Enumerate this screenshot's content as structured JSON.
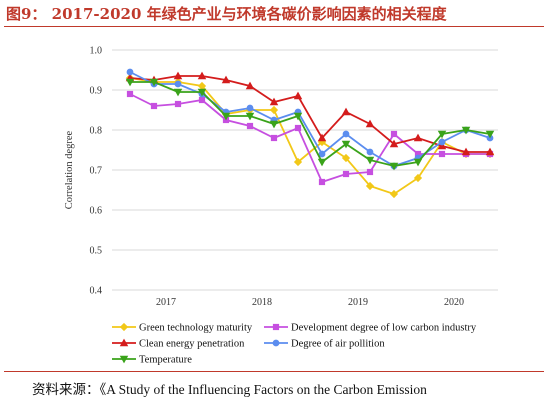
{
  "title": "图9： 2017-2020 年绿色产业与环境各碳价影响因素的相关程度",
  "source": "资料来源：《A Study of the Influencing Factors on the Carbon Emission",
  "chart_data": {
    "type": "line",
    "ylabel": "Correlation degree",
    "xlabel": "",
    "ylim": [
      0.4,
      1.0
    ],
    "yticks": [
      "0.4",
      "0.5",
      "0.6",
      "0.7",
      "0.8",
      "0.9",
      "1.0"
    ],
    "x_tick_labels": [
      "2017",
      "2018",
      "2019",
      "2020"
    ],
    "x_points": 16,
    "grid": "horizontal",
    "legend_position": "bottom",
    "series": [
      {
        "name": "Green technology maturity",
        "color": "#f2c818",
        "marker": "diamond",
        "values": [
          0.93,
          0.92,
          0.92,
          0.91,
          0.84,
          0.85,
          0.85,
          0.72,
          0.77,
          0.73,
          0.66,
          0.64,
          0.68,
          0.77,
          0.74,
          0.74
        ]
      },
      {
        "name": "Development degree of low carbon industry",
        "color": "#c64fe0",
        "marker": "square",
        "values": [
          0.89,
          0.86,
          0.865,
          0.875,
          0.825,
          0.81,
          0.78,
          0.805,
          0.67,
          0.69,
          0.695,
          0.79,
          0.74,
          0.74,
          0.74,
          0.74
        ]
      },
      {
        "name": "Clean energy penetration",
        "color": "#d41c1c",
        "marker": "triangle-up",
        "values": [
          0.93,
          0.925,
          0.935,
          0.935,
          0.925,
          0.91,
          0.87,
          0.885,
          0.78,
          0.845,
          0.815,
          0.765,
          0.78,
          0.76,
          0.745,
          0.745
        ]
      },
      {
        "name": "Degree of air pollition",
        "color": "#5b8def",
        "marker": "circle",
        "values": [
          0.945,
          0.915,
          0.915,
          0.89,
          0.845,
          0.855,
          0.825,
          0.845,
          0.74,
          0.79,
          0.745,
          0.71,
          0.73,
          0.77,
          0.8,
          0.78
        ]
      },
      {
        "name": "Temperature",
        "color": "#3aa31a",
        "marker": "triangle-down",
        "values": [
          0.92,
          0.92,
          0.895,
          0.895,
          0.835,
          0.835,
          0.815,
          0.835,
          0.72,
          0.765,
          0.725,
          0.71,
          0.72,
          0.79,
          0.8,
          0.79
        ]
      }
    ]
  }
}
